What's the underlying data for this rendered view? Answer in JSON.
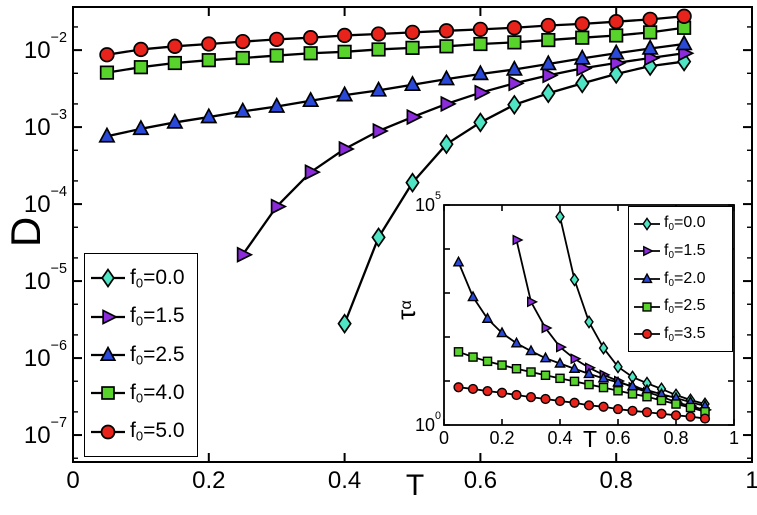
{
  "figure": {
    "background": "#ffffff",
    "line_color": "#000000"
  },
  "chart_data": [
    {
      "id": "main",
      "type": "line",
      "title": "",
      "xlabel": "T",
      "ylabel": "D",
      "grid": false,
      "legend_position": "bottom-left",
      "x_axis": {
        "lim": [
          0,
          1
        ],
        "ticks": [
          0,
          0.2,
          0.4,
          0.6,
          0.8,
          1
        ],
        "tick_labels": [
          "0",
          "0.2",
          "0.4",
          "0.6",
          "0.8",
          "1"
        ]
      },
      "y_axis": {
        "scale": "log",
        "tick_label_base": "10",
        "tick_exponents": [
          -2,
          -3,
          -4,
          -5,
          -6,
          -7
        ],
        "labeled_exponents": [
          -2,
          -3,
          -4,
          -5,
          -6,
          -7
        ],
        "lim_log": [
          -7.35,
          -1.44
        ]
      },
      "series": [
        {
          "label": {
            "pre": "f",
            "sub": "0",
            "post": "=0.0"
          },
          "marker": "diamond",
          "color": "#4fe4c3",
          "x": [
            0.4,
            0.45,
            0.5,
            0.55,
            0.6,
            0.65,
            0.7,
            0.75,
            0.8,
            0.85,
            0.9
          ],
          "y": [
            2.8e-06,
            3.7e-05,
            0.00019,
            0.0006,
            0.00115,
            0.00195,
            0.00275,
            0.0037,
            0.0049,
            0.0062,
            0.0071
          ]
        },
        {
          "label": {
            "pre": "f",
            "sub": "0",
            "post": "=1.5"
          },
          "marker": "triangle-right",
          "color": "#8c2bdc",
          "x": [
            0.25,
            0.3,
            0.35,
            0.4,
            0.45,
            0.5,
            0.55,
            0.6,
            0.65,
            0.7,
            0.75,
            0.8,
            0.85,
            0.9
          ],
          "y": [
            2.2e-05,
            9.3e-05,
            0.00026,
            0.00052,
            0.00089,
            0.00135,
            0.002,
            0.0028,
            0.0037,
            0.0047,
            0.0058,
            0.0068,
            0.0079,
            0.0091
          ]
        },
        {
          "label": {
            "pre": "f",
            "sub": "0",
            "post": "=2.5"
          },
          "marker": "triangle-up",
          "color": "#2b49d8",
          "x": [
            0.05,
            0.1,
            0.15,
            0.2,
            0.25,
            0.3,
            0.35,
            0.4,
            0.45,
            0.5,
            0.55,
            0.6,
            0.65,
            0.7,
            0.75,
            0.8,
            0.85,
            0.9
          ],
          "y": [
            0.00076,
            0.00095,
            0.00115,
            0.00135,
            0.0016,
            0.00185,
            0.0022,
            0.0026,
            0.003,
            0.00355,
            0.0042,
            0.0049,
            0.0056,
            0.0066,
            0.0078,
            0.0091,
            0.0105,
            0.012
          ]
        },
        {
          "label": {
            "pre": "f",
            "sub": "0",
            "post": "=4.0"
          },
          "marker": "square",
          "color": "#57d32b",
          "x": [
            0.05,
            0.1,
            0.15,
            0.2,
            0.25,
            0.3,
            0.35,
            0.4,
            0.45,
            0.5,
            0.55,
            0.6,
            0.65,
            0.7,
            0.75,
            0.8,
            0.85,
            0.9
          ],
          "y": [
            0.0051,
            0.006,
            0.0068,
            0.0074,
            0.0079,
            0.0085,
            0.0091,
            0.0095,
            0.0102,
            0.0107,
            0.0112,
            0.012,
            0.0126,
            0.0135,
            0.0145,
            0.0155,
            0.017,
            0.0195
          ]
        },
        {
          "label": {
            "pre": "f",
            "sub": "0",
            "post": "=5.0"
          },
          "marker": "circle",
          "color": "#e8231b",
          "x": [
            0.05,
            0.1,
            0.15,
            0.2,
            0.25,
            0.3,
            0.35,
            0.4,
            0.45,
            0.5,
            0.55,
            0.6,
            0.65,
            0.7,
            0.75,
            0.8,
            0.85,
            0.9
          ],
          "y": [
            0.0087,
            0.0102,
            0.0112,
            0.012,
            0.0129,
            0.0138,
            0.0145,
            0.0155,
            0.0162,
            0.017,
            0.0178,
            0.0186,
            0.0195,
            0.0209,
            0.0219,
            0.0234,
            0.0251,
            0.0275
          ]
        }
      ]
    },
    {
      "id": "inset",
      "type": "line",
      "title": "",
      "xlabel": "T",
      "ylabel": {
        "base": "τ",
        "sub": "α"
      },
      "grid": false,
      "legend_position": "top-right",
      "x_axis": {
        "lim": [
          0,
          1
        ],
        "ticks": [
          0,
          0.2,
          0.4,
          0.6,
          0.8,
          1
        ],
        "tick_labels": [
          "0",
          "0.2",
          "0.4",
          "0.6",
          "0.8",
          "1"
        ]
      },
      "y_axis": {
        "scale": "log",
        "tick_label_base": "10",
        "tick_exponents": [
          0,
          1,
          2,
          3,
          4,
          5
        ],
        "labeled_exponents": [
          5,
          0
        ],
        "lim_log": [
          0,
          5
        ]
      },
      "series": [
        {
          "label": {
            "pre": "f",
            "sub": "0",
            "post": "=0.0"
          },
          "marker": "diamond",
          "color": "#4fe4c3",
          "x": [
            0.4,
            0.45,
            0.5,
            0.55,
            0.6,
            0.65,
            0.7,
            0.75,
            0.8,
            0.85,
            0.9
          ],
          "y": [
            54000,
            2000,
            220,
            56,
            21,
            12.3,
            8.9,
            6.6,
            4.8,
            3.7,
            3.0
          ]
        },
        {
          "label": {
            "pre": "f",
            "sub": "0",
            "post": "=1.5"
          },
          "marker": "triangle-right",
          "color": "#8c2bdc",
          "x": [
            0.25,
            0.3,
            0.35,
            0.4,
            0.45,
            0.5,
            0.55,
            0.6,
            0.65,
            0.7,
            0.75,
            0.8,
            0.85,
            0.9
          ],
          "y": [
            16000,
            630,
            160,
            59,
            32,
            20,
            13.8,
            10,
            7.2,
            5.6,
            4.4,
            3.3,
            2.7,
            2.2
          ]
        },
        {
          "label": {
            "pre": "f",
            "sub": "0",
            "post": "=2.0"
          },
          "marker": "triangle-up",
          "color": "#2b49d8",
          "x": [
            0.05,
            0.1,
            0.15,
            0.2,
            0.25,
            0.3,
            0.35,
            0.4,
            0.45,
            0.5,
            0.55,
            0.6,
            0.65,
            0.7,
            0.75,
            0.8,
            0.85,
            0.9
          ],
          "y": [
            5000,
            810,
            260,
            123,
            72,
            48,
            33,
            25,
            19,
            14.5,
            11.5,
            9.3,
            7.6,
            6.2,
            5.0,
            4.1,
            3.3,
            2.7
          ]
        },
        {
          "label": {
            "pre": "f",
            "sub": "0",
            "post": "=2.5"
          },
          "marker": "square",
          "color": "#57d32b",
          "x": [
            0.05,
            0.1,
            0.15,
            0.2,
            0.25,
            0.3,
            0.35,
            0.4,
            0.45,
            0.5,
            0.55,
            0.6,
            0.65,
            0.7,
            0.75,
            0.8,
            0.85,
            0.9
          ],
          "y": [
            46,
            35,
            28,
            23,
            19,
            16,
            13.5,
            11.5,
            9.8,
            8.3,
            7.1,
            6.0,
            5.1,
            4.4,
            3.6,
            3.0,
            2.5,
            2.0
          ]
        },
        {
          "label": {
            "pre": "f",
            "sub": "0",
            "post": "=3.5"
          },
          "marker": "circle",
          "color": "#e8231b",
          "x": [
            0.05,
            0.1,
            0.15,
            0.2,
            0.25,
            0.3,
            0.35,
            0.4,
            0.45,
            0.5,
            0.55,
            0.6,
            0.65,
            0.7,
            0.75,
            0.8,
            0.85,
            0.9
          ],
          "y": [
            7.2,
            6.6,
            5.9,
            5.4,
            4.8,
            4.3,
            3.9,
            3.5,
            3.2,
            2.8,
            2.6,
            2.3,
            2.1,
            1.95,
            1.8,
            1.66,
            1.55,
            1.4
          ]
        }
      ]
    }
  ]
}
